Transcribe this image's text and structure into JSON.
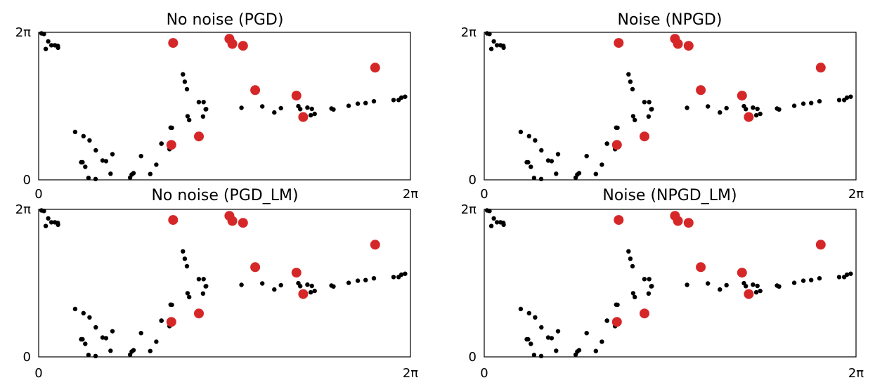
{
  "colors": {
    "background": "#000000",
    "highlight": "#d62728",
    "axis": "#000000"
  },
  "tick_labels": {
    "zero": "0",
    "max": "2π"
  },
  "chart_data": [
    {
      "type": "scatter",
      "title": "No noise (PGD)",
      "xlim": [
        0,
        6.2832
      ],
      "ylim": [
        0,
        6.2832
      ],
      "x_ticks": [
        "0",
        "2π"
      ],
      "y_ticks": [
        "0",
        "2π"
      ],
      "grid": false
    },
    {
      "type": "scatter",
      "title": "Noise (NPGD)",
      "xlim": [
        0,
        6.2832
      ],
      "ylim": [
        0,
        6.2832
      ],
      "x_ticks": [
        "0",
        "2π"
      ],
      "y_ticks": [
        "0",
        "2π"
      ],
      "grid": false
    },
    {
      "type": "scatter",
      "title": "No noise (PGD_LM)",
      "xlim": [
        0,
        6.2832
      ],
      "ylim": [
        0,
        6.2832
      ],
      "x_ticks": [
        "0",
        "2π"
      ],
      "y_ticks": [
        "0",
        "2π"
      ],
      "grid": false
    },
    {
      "type": "scatter",
      "title": "Noise (NPGD_LM)",
      "xlim": [
        0,
        6.2832
      ],
      "ylim": [
        0,
        6.2832
      ],
      "x_ticks": [
        "0",
        "2π"
      ],
      "y_ticks": [
        "0",
        "2π"
      ],
      "grid": false
    }
  ],
  "scatter_series": {
    "background_points": {
      "x": [
        0.048,
        0.162,
        0.215,
        0.274,
        0.323,
        0.328,
        0.12,
        0.089,
        0.758,
        0.617,
        0.86,
        0.741,
        0.719,
        0.788,
        0.966,
        1.081,
        1.139,
        1.215,
        1.247,
        0.962,
        0.842,
        1.545,
        1.573,
        1.603,
        1.886,
        1.731,
        1.988,
        2.076,
        2.074,
        2.211,
        2.252,
        2.231,
        2.438,
        2.506,
        2.544,
        2.469,
        2.517,
        2.788,
        2.707,
        2.778,
        2.83,
        2.823,
        3.428,
        3.78,
        3.982,
        4.094,
        4.421,
        4.389,
        4.542,
        4.617,
        4.598,
        4.664,
        4.983,
        4.948,
        5.239,
        5.393,
        5.526,
        5.665,
        5.998,
        6.084,
        6.13,
        6.193
      ],
      "y": [
        6.239,
        5.898,
        5.734,
        5.734,
        5.707,
        5.627,
        5.574,
        6.213,
        1.861,
        2.042,
        1.683,
        0.748,
        0.748,
        0.555,
        1.257,
        0.823,
        0.795,
        0.259,
        1.093,
        0.035,
        0.081,
        0.093,
        0.223,
        0.283,
        0.247,
        1.011,
        0.647,
        1.542,
        1.542,
        1.309,
        2.218,
        2.222,
        4.495,
        3.859,
        2.547,
        4.181,
        2.712,
        3.311,
        3.312,
        2.699,
        3.014,
        3.005,
        3.066,
        3.126,
        2.869,
        3.051,
        3.013,
        3.138,
        3.077,
        3.021,
        2.751,
        2.808,
        2.998,
        3.038,
        3.154,
        3.243,
        3.271,
        3.346,
        3.398,
        3.401,
        3.502,
        3.541
      ]
    },
    "highlight_points": {
      "x": [
        2.242,
        2.272,
        2.708,
        3.224,
        3.273,
        3.454,
        3.66,
        4.357,
        4.471,
        5.687
      ],
      "y": [
        1.49,
        5.83,
        1.85,
        6.008,
        5.79,
        5.71,
        3.821,
        3.586,
        2.674,
        4.778
      ]
    }
  }
}
